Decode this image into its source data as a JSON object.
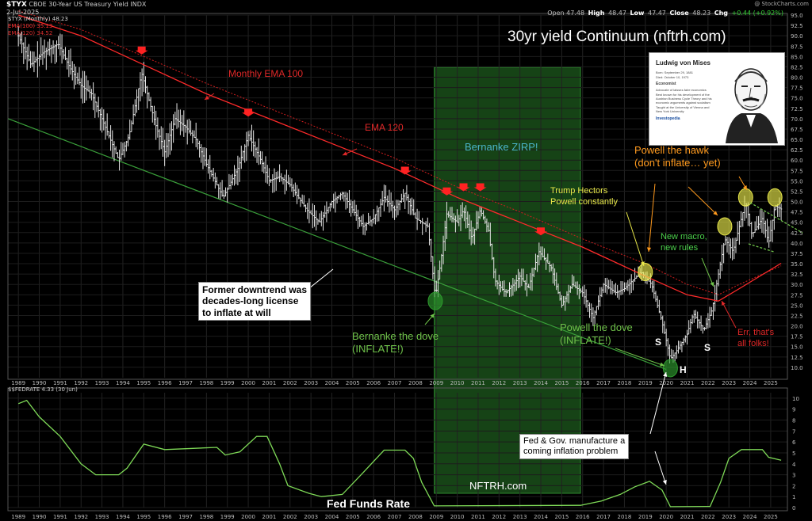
{
  "header": {
    "symbol": "$TYX",
    "description": "CBOE 30-Year US Treasury Yield INDX",
    "date": "2-Jul-2025",
    "credit": "@ StockCharts.com",
    "ohlc": {
      "open_label": "Open",
      "open": "47.48",
      "high_label": "High",
      "high": "48.47",
      "low_label": "Low",
      "low": "47.47",
      "close_label": "Close",
      "close": "48.23",
      "chg_label": "Chg",
      "chg": "+0.44 (+0.92%)"
    },
    "legend_main": "$TYX (Monthly) 48.23",
    "legend_ema100": "EMA(100) 35.13",
    "legend_ema120": "EMA(120) 34.52",
    "legend_lower": "$$FEDRATE 4.33 (30 Jun)"
  },
  "title": "30yr yield Continuum (nftrh.com)",
  "annotations": {
    "monthly_ema": "Monthly EMA 100",
    "ema120": "EMA 120",
    "zirp": "Bernanke ZIRP!",
    "trump": [
      "Trump Hectors",
      "Powell constantly"
    ],
    "hawk": [
      "Powell the hawk",
      "(don't inflate… yet)"
    ],
    "new_macro": [
      "New macro,",
      "new rules"
    ],
    "former": [
      "Former downtrend was",
      "decades-long license",
      "to inflate at will"
    ],
    "bernanke_dove": [
      "Bernanke the dove",
      "(INFLATE!)"
    ],
    "powell_dove": [
      "Powell the dove",
      "(INFLATE!)"
    ],
    "err": [
      "Err, that's",
      "all folks!"
    ],
    "fed_gov": [
      "Fed & Gov. manufacture a",
      "coming inflation problem"
    ],
    "s1": "S",
    "h": "H",
    "s2": "S",
    "fed_funds": "Fed Funds Rate",
    "nftrh": "NFTRH.com"
  },
  "photo": {
    "name": "Ludwig von Mises",
    "lines": [
      "Born: September 29, 1881",
      "Died: October 10, 1973",
      "Economist",
      "Advocate of laissez-faire economics",
      "Best known for his development of the",
      "Austrian Business Cycle Theory and his",
      "economic arguments against socialism",
      "Taught at the University of Vienna and",
      "New York University",
      "Investopedia"
    ]
  },
  "colors": {
    "price": "#e6e6e6",
    "ema100": "#ff2a2a",
    "ema120": "#d21e1e",
    "trend": "#3aa03a",
    "zirp": "#1e5a1e",
    "fedrate": "#7ed957",
    "arrow": "#ff2222",
    "yellow": "#e8e84a",
    "green_ann": "#6fc24a",
    "orange_ann": "#ff9a1e",
    "red_ann": "#e02828",
    "blue_ann": "#4ab4c8"
  },
  "chart_data": [
    {
      "type": "bar",
      "subtype": "ohlc",
      "title": "30yr yield Continuum (nftrh.com)",
      "x_years": [
        "1989",
        "1990",
        "1991",
        "1992",
        "1993",
        "1994",
        "1995",
        "1996",
        "1997",
        "1998",
        "1999",
        "2000",
        "2001",
        "2002",
        "2003",
        "2004",
        "2005",
        "2006",
        "2007",
        "2008",
        "2009",
        "2010",
        "2011",
        "2012",
        "2013",
        "2014",
        "2015",
        "2016",
        "2017",
        "2018",
        "2019",
        "2020",
        "2021",
        "2022",
        "2023",
        "2024",
        "2025"
      ],
      "ylim": [
        7.5,
        95
      ],
      "y_ticks": [
        10.0,
        12.5,
        15.0,
        17.5,
        20.0,
        22.5,
        25.0,
        27.5,
        30.0,
        32.5,
        35.0,
        37.5,
        40.0,
        42.5,
        45.0,
        47.5,
        50.0,
        52.5,
        55.0,
        57.5,
        60.0,
        62.5,
        65.0,
        67.5,
        70.0,
        72.5,
        75.0,
        77.5,
        80.0,
        82.5,
        85.0,
        87.5,
        90.0,
        92.5,
        95.0
      ],
      "price_path": [
        [
          1989.0,
          90
        ],
        [
          1989.6,
          83
        ],
        [
          1990.2,
          86
        ],
        [
          1990.9,
          88
        ],
        [
          1991.5,
          82
        ],
        [
          1992.0,
          78
        ],
        [
          1992.5,
          76
        ],
        [
          1993.0,
          70
        ],
        [
          1993.8,
          60
        ],
        [
          1994.3,
          66
        ],
        [
          1994.9,
          81
        ],
        [
          1995.6,
          68
        ],
        [
          1996.0,
          62
        ],
        [
          1996.5,
          70
        ],
        [
          1997.0,
          68
        ],
        [
          1997.5,
          65
        ],
        [
          1998.0,
          59
        ],
        [
          1998.8,
          51
        ],
        [
          1999.5,
          58
        ],
        [
          2000.0,
          66
        ],
        [
          2000.6,
          60
        ],
        [
          2001.0,
          55
        ],
        [
          2001.5,
          56
        ],
        [
          2002.0,
          54
        ],
        [
          2002.8,
          48
        ],
        [
          2003.4,
          45
        ],
        [
          2004.0,
          50
        ],
        [
          2004.5,
          52
        ],
        [
          2005.0,
          48
        ],
        [
          2005.5,
          44
        ],
        [
          2006.0,
          46
        ],
        [
          2006.5,
          51
        ],
        [
          2007.0,
          48
        ],
        [
          2007.5,
          52
        ],
        [
          2008.0,
          46
        ],
        [
          2008.6,
          44
        ],
        [
          2008.95,
          27
        ],
        [
          2009.2,
          35
        ],
        [
          2009.5,
          47
        ],
        [
          2010.0,
          45
        ],
        [
          2010.3,
          48
        ],
        [
          2010.7,
          41
        ],
        [
          2011.1,
          48
        ],
        [
          2011.5,
          43
        ],
        [
          2011.8,
          31
        ],
        [
          2012.3,
          28
        ],
        [
          2012.7,
          30
        ],
        [
          2013.0,
          32
        ],
        [
          2013.4,
          29
        ],
        [
          2013.9,
          38
        ],
        [
          2014.5,
          34
        ],
        [
          2015.0,
          25
        ],
        [
          2015.5,
          30
        ],
        [
          2016.0,
          28
        ],
        [
          2016.5,
          22
        ],
        [
          2017.0,
          30
        ],
        [
          2017.6,
          28
        ],
        [
          2018.0,
          29
        ],
        [
          2018.8,
          33
        ],
        [
          2019.3,
          30
        ],
        [
          2019.8,
          21
        ],
        [
          2020.2,
          12
        ],
        [
          2020.5,
          14
        ],
        [
          2021.0,
          18
        ],
        [
          2021.3,
          23
        ],
        [
          2021.8,
          19
        ],
        [
          2022.2,
          24
        ],
        [
          2022.8,
          41
        ],
        [
          2023.2,
          38
        ],
        [
          2023.8,
          50
        ],
        [
          2024.1,
          42
        ],
        [
          2024.6,
          46
        ],
        [
          2024.9,
          40
        ],
        [
          2025.2,
          49
        ],
        [
          2025.5,
          48.2
        ]
      ],
      "ema100": [
        [
          1989.0,
          95
        ],
        [
          1992.0,
          90
        ],
        [
          1995.0,
          83
        ],
        [
          1998.0,
          76
        ],
        [
          2001.0,
          70
        ],
        [
          2004.0,
          64
        ],
        [
          2007.0,
          58
        ],
        [
          2010.0,
          51
        ],
        [
          2013.0,
          45
        ],
        [
          2016.0,
          39
        ],
        [
          2019.0,
          32
        ],
        [
          2021.0,
          27.5
        ],
        [
          2022.5,
          26
        ],
        [
          2023.5,
          29
        ],
        [
          2025.5,
          35.1
        ]
      ],
      "ema120": [
        [
          1989.0,
          96
        ],
        [
          1992.0,
          91.5
        ],
        [
          1995.0,
          85
        ],
        [
          1998.0,
          78.5
        ],
        [
          2001.0,
          72.5
        ],
        [
          2004.0,
          66.5
        ],
        [
          2007.0,
          60.5
        ],
        [
          2010.0,
          53.5
        ],
        [
          2013.0,
          47.5
        ],
        [
          2016.0,
          41
        ],
        [
          2019.0,
          35
        ],
        [
          2021.0,
          30
        ],
        [
          2022.5,
          27.5
        ],
        [
          2023.5,
          30
        ],
        [
          2025.5,
          34.5
        ]
      ],
      "trend_line": [
        [
          1988.5,
          70
        ],
        [
          2020.0,
          9.5
        ]
      ],
      "zirp_span": [
        2008.9,
        2015.9
      ],
      "peak_arrows": [
        1994.9,
        2000.0,
        2007.5,
        2009.5,
        2010.3,
        2011.1,
        2014.0
      ],
      "highlights": [
        [
          2008.95,
          26
        ],
        [
          2019.0,
          33
        ],
        [
          2020.2,
          9.8
        ],
        [
          2022.8,
          44
        ],
        [
          2023.8,
          51
        ],
        [
          2025.2,
          51
        ]
      ]
    },
    {
      "type": "line",
      "title": "Fed Funds Rate",
      "ylim": [
        0,
        10.5
      ],
      "y_ticks": [
        0,
        1,
        2,
        3,
        4,
        5,
        6,
        7,
        8,
        9,
        10
      ],
      "fed_rate": [
        [
          1989.0,
          9.5
        ],
        [
          1989.4,
          9.8
        ],
        [
          1990.0,
          8.3
        ],
        [
          1991.0,
          6.5
        ],
        [
          1992.0,
          4.0
        ],
        [
          1992.7,
          3.0
        ],
        [
          1993.8,
          3.0
        ],
        [
          1994.2,
          3.6
        ],
        [
          1995.0,
          5.8
        ],
        [
          1996.0,
          5.3
        ],
        [
          1998.5,
          5.5
        ],
        [
          1998.9,
          4.8
        ],
        [
          1999.6,
          5.1
        ],
        [
          2000.4,
          6.5
        ],
        [
          2000.9,
          6.5
        ],
        [
          2001.5,
          4.0
        ],
        [
          2001.9,
          2.0
        ],
        [
          2002.9,
          1.3
        ],
        [
          2003.5,
          1.0
        ],
        [
          2004.5,
          1.2
        ],
        [
          2005.5,
          3.2
        ],
        [
          2006.5,
          5.25
        ],
        [
          2007.5,
          5.25
        ],
        [
          2007.9,
          4.5
        ],
        [
          2008.3,
          2.3
        ],
        [
          2008.9,
          0.15
        ],
        [
          2015.9,
          0.2
        ],
        [
          2016.9,
          0.6
        ],
        [
          2017.8,
          1.2
        ],
        [
          2018.5,
          1.9
        ],
        [
          2019.2,
          2.4
        ],
        [
          2019.8,
          1.6
        ],
        [
          2020.2,
          0.08
        ],
        [
          2022.1,
          0.1
        ],
        [
          2022.6,
          2.3
        ],
        [
          2023.0,
          4.5
        ],
        [
          2023.6,
          5.3
        ],
        [
          2024.6,
          5.3
        ],
        [
          2024.9,
          4.6
        ],
        [
          2025.5,
          4.33
        ]
      ]
    }
  ]
}
